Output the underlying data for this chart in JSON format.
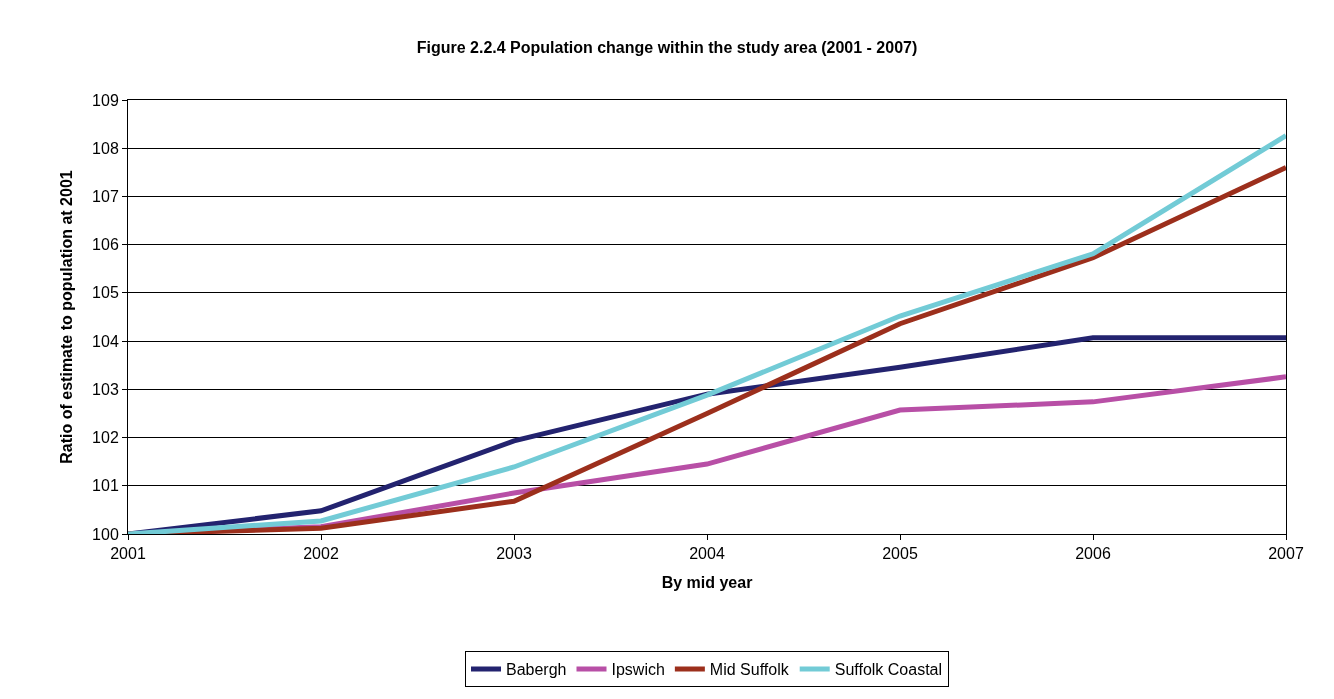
{
  "chart_data": {
    "type": "line",
    "title": "Figure 2.2.4 Population change within the study area (2001 - 2007)",
    "xlabel": "By mid year",
    "ylabel": "Ratio of estimate to population at 2001",
    "x": [
      2001,
      2002,
      2003,
      2004,
      2005,
      2006,
      2007
    ],
    "xlim": [
      2001,
      2007
    ],
    "xticks": [
      2001,
      2002,
      2003,
      2004,
      2005,
      2006,
      2007
    ],
    "ylim": [
      100,
      109
    ],
    "yticks": [
      100,
      101,
      102,
      103,
      104,
      105,
      106,
      107,
      108,
      109
    ],
    "grid": "y",
    "legend": "bottom",
    "marker": "none",
    "line_style": "solid",
    "series": [
      {
        "name": "Babergh",
        "color": "#23236f",
        "values": [
          100,
          100.48,
          101.93,
          102.9,
          103.46,
          104.07,
          104.07
        ]
      },
      {
        "name": "Ipswich",
        "color": "#b84fa6",
        "values": [
          100,
          100.15,
          100.85,
          101.45,
          102.57,
          102.74,
          103.26
        ]
      },
      {
        "name": "Mid Suffolk",
        "color": "#9c2f1c",
        "values": [
          100,
          100.12,
          100.68,
          102.5,
          104.36,
          105.73,
          107.6
        ]
      },
      {
        "name": "Suffolk Coastal",
        "color": "#72cbd6",
        "values": [
          100,
          100.27,
          101.39,
          102.88,
          104.52,
          105.81,
          108.26
        ]
      }
    ]
  }
}
